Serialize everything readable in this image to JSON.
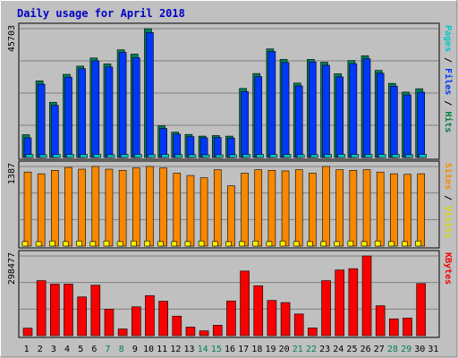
{
  "chart_data": {
    "type": "bar",
    "title": "Daily usage for April 2018",
    "days": [
      "1",
      "2",
      "3",
      "4",
      "5",
      "6",
      "7",
      "8",
      "9",
      "10",
      "11",
      "12",
      "13",
      "14",
      "15",
      "16",
      "17",
      "18",
      "19",
      "20",
      "21",
      "22",
      "23",
      "24",
      "25",
      "26",
      "27",
      "28",
      "29",
      "30",
      "31"
    ],
    "weekend_days": [
      "7",
      "8",
      "14",
      "15",
      "21",
      "22",
      "28",
      "29"
    ],
    "panels": [
      {
        "id": "hits-files-pages",
        "max_label": "45703",
        "ymax": 45703,
        "side_labels": [
          {
            "text": "Pages",
            "color": "#00c8c8"
          },
          {
            "text": " / ",
            "color": "#000000"
          },
          {
            "text": "Files",
            "color": "#0038f8"
          },
          {
            "text": " / ",
            "color": "#000000"
          },
          {
            "text": "Hits",
            "color": "#008040"
          }
        ],
        "series": [
          {
            "key": "hits",
            "color": "#00805a",
            "values": [
              8100,
              27200,
              19600,
              29500,
              32400,
              35300,
              33200,
              38200,
              36700,
              45703,
              11200,
              9000,
              8200,
              7600,
              7800,
              7600,
              24500,
              29800,
              38500,
              34800,
              26400,
              34800,
              33800,
              29700,
              34400,
              36100,
              30900,
              26300,
              23200,
              24400,
              null
            ]
          },
          {
            "key": "files",
            "color": "#0038f8",
            "values": [
              7000,
              26000,
              18500,
              28500,
              31500,
              34300,
              32100,
              37300,
              35400,
              44300,
              10300,
              8300,
              7400,
              7000,
              7100,
              6900,
              23400,
              28700,
              37600,
              33700,
              25400,
              33900,
              32700,
              28600,
              33300,
              35000,
              29900,
              25300,
              22200,
              23200,
              null
            ]
          },
          {
            "key": "pages",
            "color": "#00c8c8",
            "values": [
              1100,
              1000,
              1100,
              1100,
              1100,
              1100,
              1000,
              1100,
              1100,
              1000,
              1100,
              1000,
              1000,
              900,
              900,
              1000,
              1100,
              1100,
              1100,
              1100,
              1000,
              1000,
              1100,
              1100,
              1100,
              1100,
              1100,
              1100,
              1000,
              1100,
              null
            ]
          }
        ]
      },
      {
        "id": "visits-sites",
        "max_label": "1387",
        "ymax": 1387,
        "side_labels": [
          {
            "text": "Sites",
            "color": "#f88800"
          },
          {
            "text": " / ",
            "color": "#000000"
          },
          {
            "text": "Visits",
            "color": "#d8d800"
          }
        ],
        "series": [
          {
            "key": "visits",
            "color": "#f8f000",
            "values": [
              80,
              70,
              90,
              80,
              90,
              80,
              90,
              80,
              90,
              90,
              80,
              80,
              80,
              90,
              80,
              70,
              80,
              90,
              80,
              90,
              80,
              80,
              80,
              80,
              90,
              80,
              90,
              80,
              80,
              90,
              null
            ]
          },
          {
            "key": "sites",
            "color": "#f88800",
            "values": [
              1290,
              1260,
              1320,
              1370,
              1340,
              1387,
              1340,
              1320,
              1360,
              1387,
              1360,
              1270,
              1230,
              1190,
              1330,
              1050,
              1270,
              1330,
              1320,
              1310,
              1330,
              1270,
              1387,
              1330,
              1320,
              1330,
              1290,
              1260,
              1250,
              1260,
              null
            ]
          }
        ]
      },
      {
        "id": "kbytes",
        "max_label": "298477",
        "ymax": 298477,
        "side_labels": [
          {
            "text": "KBytes",
            "color": "#f80000"
          }
        ],
        "series": [
          {
            "key": "kbytes",
            "color": "#f80000",
            "values": [
              28000,
              206000,
              193000,
              193000,
              145000,
              189000,
              99000,
              25000,
              108000,
              150000,
              129000,
              73000,
              32000,
              18000,
              39000,
              130000,
              242000,
              187000,
              132000,
              124000,
              81000,
              29000,
              206000,
              246000,
              251000,
              298477,
              112000,
              63000,
              66000,
              195000,
              null
            ]
          }
        ]
      }
    ]
  }
}
